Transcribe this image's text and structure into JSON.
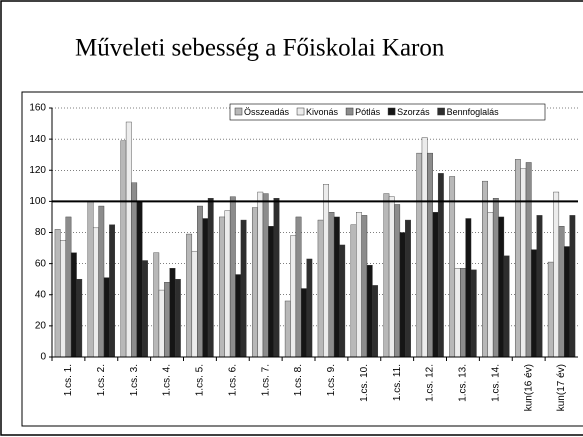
{
  "chart_data": {
    "type": "bar",
    "title": "Műveleti sebesség a Főiskolai Karon",
    "categories": [
      "1.cs. 1.",
      "1.cs. 2.",
      "1.cs. 3.",
      "1.cs. 4.",
      "1.cs. 5.",
      "1.cs. 6.",
      "1.cs. 7.",
      "1.cs. 8.",
      "1.cs. 9.",
      "1.cs. 10.",
      "1.cs. 11.",
      "1.cs. 12.",
      "1.cs. 13.",
      "1.cs. 14.",
      "kun(16 év)",
      "kun(17 év)"
    ],
    "series": [
      {
        "name": "Összeadás",
        "color": "#b8b8b8",
        "values": [
          82,
          100,
          139,
          67,
          79,
          90,
          96,
          36,
          88,
          85,
          105,
          131,
          116,
          113,
          127,
          61
        ]
      },
      {
        "name": "Kivonás",
        "color": "#ececec",
        "values": [
          75,
          83,
          151,
          43,
          68,
          94,
          106,
          78,
          111,
          93,
          103,
          141,
          57,
          93,
          121,
          106
        ]
      },
      {
        "name": "Pótlás",
        "color": "#8c8c8c",
        "values": [
          90,
          97,
          112,
          48,
          97,
          103,
          105,
          90,
          93,
          91,
          98,
          131,
          57,
          102,
          125,
          84
        ]
      },
      {
        "name": "Szorzás",
        "color": "#151515",
        "values": [
          67,
          51,
          100,
          57,
          89,
          53,
          84,
          44,
          90,
          59,
          80,
          93,
          89,
          90,
          69,
          71
        ]
      },
      {
        "name": "Bennfoglalás",
        "color": "#2e2e2e",
        "values": [
          50,
          85,
          62,
          50,
          102,
          88,
          102,
          63,
          72,
          46,
          88,
          118,
          56,
          65,
          91,
          91
        ]
      }
    ],
    "ylim": [
      0,
      160
    ],
    "yticks": [
      0,
      20,
      40,
      60,
      80,
      100,
      120,
      140,
      160
    ],
    "grid": true,
    "reference_line": 100,
    "legend": "top-right"
  }
}
